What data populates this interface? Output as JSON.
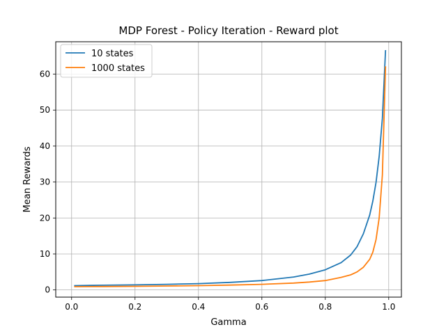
{
  "chart_data": {
    "type": "line",
    "title": "MDP Forest - Policy Iteration - Reward plot",
    "xlabel": "Gamma",
    "ylabel": "Mean Rewards",
    "xlim": [
      -0.05,
      1.04
    ],
    "ylim": [
      -2,
      69
    ],
    "xticks": [
      0.0,
      0.2,
      0.4,
      0.6,
      0.8,
      1.0
    ],
    "xtick_labels": [
      "0.0",
      "0.2",
      "0.4",
      "0.6",
      "0.8",
      "1.0"
    ],
    "yticks": [
      0,
      10,
      20,
      30,
      40,
      50,
      60
    ],
    "ytick_labels": [
      "0",
      "10",
      "20",
      "30",
      "40",
      "50",
      "60"
    ],
    "grid": true,
    "legend_position": "top-left",
    "series": [
      {
        "name": "10 states",
        "color": "#1f77b4",
        "x": [
          0.01,
          0.1,
          0.2,
          0.3,
          0.4,
          0.5,
          0.6,
          0.7,
          0.75,
          0.8,
          0.85,
          0.88,
          0.9,
          0.92,
          0.94,
          0.95,
          0.96,
          0.97,
          0.98,
          0.99
        ],
        "y": [
          1.2,
          1.3,
          1.4,
          1.55,
          1.75,
          2.1,
          2.6,
          3.6,
          4.4,
          5.6,
          7.6,
          9.7,
          12.0,
          15.6,
          20.8,
          24.7,
          29.9,
          37.1,
          47.7,
          66.5
        ]
      },
      {
        "name": "1000 states",
        "color": "#ff7f0e",
        "x": [
          0.01,
          0.1,
          0.2,
          0.3,
          0.4,
          0.5,
          0.6,
          0.7,
          0.75,
          0.8,
          0.85,
          0.88,
          0.9,
          0.92,
          0.94,
          0.95,
          0.96,
          0.97,
          0.98,
          0.99
        ],
        "y": [
          0.9,
          0.95,
          1.0,
          1.1,
          1.2,
          1.35,
          1.55,
          1.9,
          2.2,
          2.6,
          3.5,
          4.2,
          5.0,
          6.3,
          8.5,
          10.5,
          14.0,
          20.0,
          32.0,
          62.0
        ]
      }
    ]
  }
}
